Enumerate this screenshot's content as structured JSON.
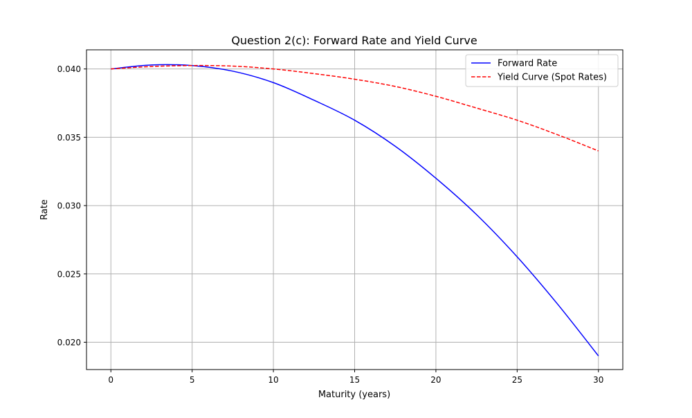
{
  "chart_data": {
    "type": "line",
    "title": "Question 2(c): Forward Rate and Yield Curve",
    "xlabel": "Maturity (years)",
    "ylabel": "Rate",
    "xlim": [
      -1.5,
      31.5
    ],
    "ylim": [
      0.018,
      0.0414
    ],
    "xticks": [
      0,
      5,
      10,
      15,
      20,
      25,
      30
    ],
    "yticks": [
      0.02,
      0.025,
      0.03,
      0.035,
      0.04
    ],
    "xtick_labels": [
      "0",
      "5",
      "10",
      "15",
      "20",
      "25",
      "30"
    ],
    "ytick_labels": [
      "0.020",
      "0.025",
      "0.030",
      "0.035",
      "0.040"
    ],
    "grid": true,
    "legend_position": "top-right",
    "x": [
      0,
      2.5,
      5,
      7.5,
      10,
      12.5,
      15,
      17.5,
      20,
      22.5,
      25,
      27.5,
      30
    ],
    "series": [
      {
        "name": "Forward Rate",
        "color": "#0000ff",
        "line_style": "solid",
        "values": [
          0.04,
          0.04029,
          0.04025,
          0.03984,
          0.039,
          0.03771,
          0.03625,
          0.03434,
          0.032,
          0.02934,
          0.02625,
          0.02277,
          0.019
        ]
      },
      {
        "name": "Yield Curve (Spot Rates)",
        "color": "#ff0000",
        "line_style": "dashed",
        "values": [
          0.04,
          0.04018,
          0.04025,
          0.04021,
          0.04,
          0.03966,
          0.03925,
          0.03872,
          0.038,
          0.03714,
          0.03625,
          0.03518,
          0.034
        ]
      }
    ]
  }
}
